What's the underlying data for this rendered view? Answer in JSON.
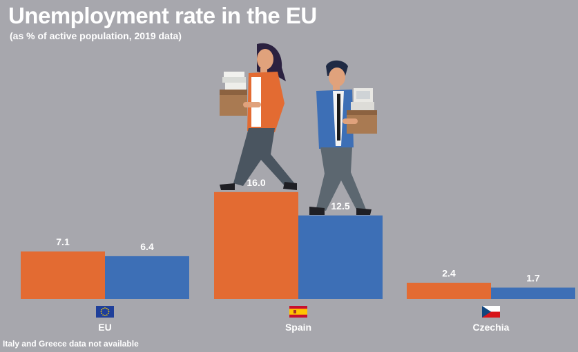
{
  "title": "Unemployment rate in the EU",
  "subtitle": "(as % of active population, 2019 data)",
  "footnote": "Italy and Greece data not available",
  "colors": {
    "background": "#a7a7ad",
    "series_a": "#e36b32",
    "series_b": "#3d6fb6",
    "text": "#ffffff"
  },
  "chart_data": {
    "type": "bar",
    "categories": [
      "EU",
      "Spain",
      "Czechia"
    ],
    "category_flags": [
      "eu-flag-icon",
      "spain-flag-icon",
      "czechia-flag-icon"
    ],
    "series": [
      {
        "values": [
          7.1,
          16.0,
          2.4
        ],
        "labels": [
          "7.1",
          "16.0",
          "2.4"
        ],
        "color": "#e36b32"
      },
      {
        "values": [
          6.4,
          12.5,
          1.7
        ],
        "labels": [
          "6.4",
          "12.5",
          "1.7"
        ],
        "color": "#3d6fb6"
      }
    ],
    "ylim": [
      0,
      16.0
    ],
    "grid": false,
    "legend": "none"
  }
}
